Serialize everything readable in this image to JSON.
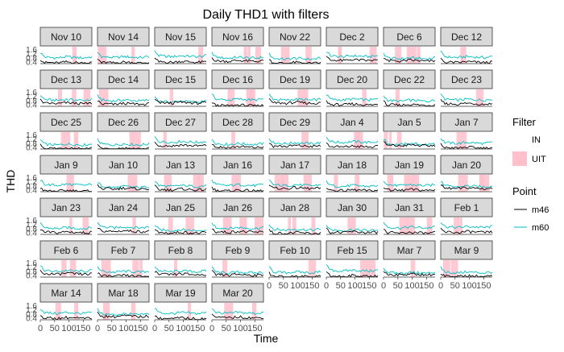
{
  "chart_data": {
    "type": "line",
    "title": "Daily THD1 with filters",
    "xlabel": "Time",
    "ylabel": "THD",
    "x_ticks": [
      "0",
      "50",
      "100",
      "150"
    ],
    "y_ticks": [
      "0.4",
      "0.8",
      "1.2",
      "1.6"
    ],
    "xlim": [
      0,
      180
    ],
    "ylim": [
      0.3,
      1.9
    ],
    "grid": false,
    "facets": [
      "Nov 10",
      "Nov 14",
      "Nov 15",
      "Nov 16",
      "Nov 22",
      "Dec 2",
      "Dec 6",
      "Dec 12",
      "Dec 13",
      "Dec 14",
      "Dec 15",
      "Dec 16",
      "Dec 19",
      "Dec 20",
      "Dec 22",
      "Dec 23",
      "Dec 25",
      "Dec 26",
      "Dec 27",
      "Dec 28",
      "Dec 29",
      "Jan 4",
      "Jan 5",
      "Jan 7",
      "Jan 9",
      "Jan 10",
      "Jan 13",
      "Jan 16",
      "Jan 17",
      "Jan 18",
      "Jan 19",
      "Jan 20",
      "Jan 23",
      "Jan 24",
      "Jan 25",
      "Jan 26",
      "Jan 28",
      "Jan 30",
      "Jan 31",
      "Feb 1",
      "Feb 6",
      "Feb 7",
      "Feb 8",
      "Feb 9",
      "Feb 10",
      "Feb 15",
      "Mar 7",
      "Mar 9",
      "Mar 14",
      "Mar 18",
      "Mar 19",
      "Mar 20"
    ],
    "legend": {
      "placement": "right",
      "filter": {
        "title": "Filter",
        "items": [
          {
            "label": "IN",
            "color": "#ffffff"
          },
          {
            "label": "UIT",
            "color": "#ffc0cb"
          }
        ]
      },
      "point": {
        "title": "Point",
        "items": [
          {
            "label": "m46",
            "color": "#000000"
          },
          {
            "label": "m60",
            "color": "#00bfc4"
          }
        ]
      }
    },
    "series_shape": {
      "m46": {
        "x": [
          0,
          30,
          60,
          90,
          120,
          150,
          180
        ],
        "y": [
          0.45,
          0.5,
          0.45,
          0.55,
          0.5,
          0.45,
          0.5
        ]
      },
      "m60": {
        "x": [
          0,
          30,
          60,
          90,
          120,
          150,
          180
        ],
        "y": [
          0.95,
          0.85,
          0.8,
          0.9,
          0.85,
          0.8,
          0.9
        ]
      }
    },
    "colors": {
      "strip": "#d9d9d9",
      "strip_border": "#333333",
      "uit": "#ffc0cb",
      "m46": "#000000",
      "m60": "#00bfc4"
    }
  }
}
